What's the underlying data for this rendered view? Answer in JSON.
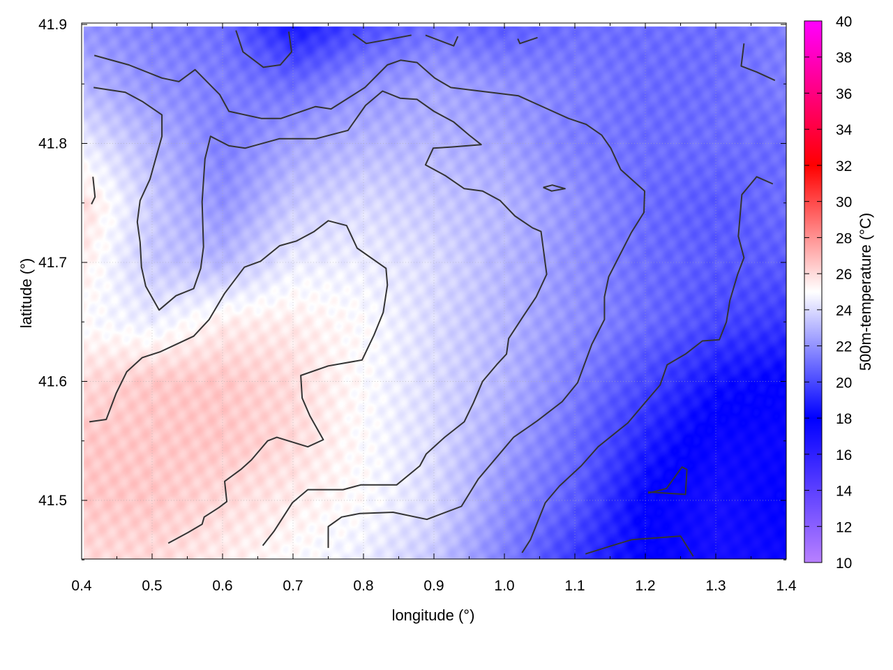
{
  "chart_data": {
    "type": "heatmap",
    "title": "",
    "xlabel": "longitude (°)",
    "ylabel": "latitude (°)",
    "cblabel": "500m-temperature (°C)",
    "xlim": [
      0.4,
      1.4
    ],
    "ylim": [
      41.4507,
      41.9012
    ],
    "cblim": [
      10,
      40
    ],
    "xticks": [
      "0.4",
      "0.5",
      "0.6",
      "0.7",
      "0.8",
      "0.9",
      "1.0",
      "1.1",
      "1.2",
      "1.3",
      "1.4"
    ],
    "yticks": [
      "41.5",
      "41.6",
      "41.7",
      "41.8",
      "41.9"
    ],
    "cbticks": [
      "10",
      "12",
      "14",
      "16",
      "18",
      "20",
      "22",
      "24",
      "26",
      "28",
      "30",
      "32",
      "34",
      "36",
      "38",
      "40"
    ],
    "grid": true,
    "palette": [
      [
        10,
        "#b880ff"
      ],
      [
        18,
        "#0000ff"
      ],
      [
        25,
        "#ffffff"
      ],
      [
        32,
        "#ff0000"
      ],
      [
        40,
        "#ff00ff"
      ]
    ],
    "field": {
      "lon": [
        0.4,
        0.5,
        0.6,
        0.7,
        0.8,
        0.9,
        1.0,
        1.1,
        1.2,
        1.3,
        1.4
      ],
      "lat": [
        41.9,
        41.85,
        41.8,
        41.75,
        41.7,
        41.65,
        41.6,
        41.55,
        41.5,
        41.45
      ],
      "temperature": [
        [
          22,
          21.5,
          21,
          18.5,
          20,
          21,
          20.5,
          21,
          21,
          21,
          21.5
        ],
        [
          23,
          22,
          21.5,
          21,
          22,
          22.5,
          22,
          21.5,
          21,
          21,
          21.5
        ],
        [
          24.5,
          23,
          21.5,
          22.5,
          23,
          23,
          22.5,
          21.5,
          21,
          21,
          21
        ],
        [
          26,
          23.5,
          22,
          23.5,
          24,
          23.5,
          23,
          22,
          21,
          20.5,
          21
        ],
        [
          25.5,
          23.5,
          23,
          24.5,
          24.5,
          24,
          23,
          22,
          21,
          20.5,
          20.5
        ],
        [
          25,
          24.5,
          25.5,
          25.5,
          25,
          24,
          23,
          22,
          21,
          20,
          19.5
        ],
        [
          26,
          26.5,
          26.5,
          26,
          25,
          24,
          23,
          21.5,
          20,
          18.5,
          18
        ],
        [
          26.5,
          26.5,
          26.5,
          26,
          25,
          24,
          22.5,
          21,
          19,
          17.5,
          17.5
        ],
        [
          26.5,
          26.5,
          26,
          25.5,
          25,
          24,
          22,
          20.5,
          18,
          17,
          18
        ],
        [
          26,
          26,
          25.5,
          25,
          24.5,
          23.5,
          21.5,
          19.5,
          18,
          17,
          17.5
        ]
      ]
    },
    "contours": [
      [
        [
          0.418,
          41.874
        ],
        [
          0.467,
          41.866
        ],
        [
          0.514,
          41.855
        ],
        [
          0.538,
          41.852
        ],
        [
          0.561,
          41.862
        ],
        [
          0.596,
          41.841
        ],
        [
          0.609,
          41.827
        ],
        [
          0.655,
          41.821
        ],
        [
          0.683,
          41.821
        ],
        [
          0.732,
          41.831
        ],
        [
          0.754,
          41.829
        ],
        [
          0.802,
          41.847
        ],
        [
          0.834,
          41.866
        ],
        [
          0.853,
          41.87
        ],
        [
          0.876,
          41.868
        ],
        [
          0.901,
          41.855
        ],
        [
          0.924,
          41.847
        ],
        [
          1.02,
          41.84
        ],
        [
          1.091,
          41.821
        ],
        [
          1.116,
          41.816
        ],
        [
          1.138,
          41.807
        ],
        [
          1.151,
          41.796
        ],
        [
          1.165,
          41.778
        ],
        [
          1.199,
          41.76
        ],
        [
          1.198,
          41.742
        ],
        [
          1.18,
          41.725
        ],
        [
          1.148,
          41.688
        ],
        [
          1.142,
          41.671
        ],
        [
          1.142,
          41.652
        ],
        [
          1.124,
          41.631
        ],
        [
          1.104,
          41.599
        ],
        [
          1.082,
          41.583
        ],
        [
          1.047,
          41.567
        ],
        [
          1.013,
          41.553
        ],
        [
          0.963,
          41.518
        ],
        [
          0.939,
          41.495
        ],
        [
          0.89,
          41.484
        ],
        [
          0.842,
          41.49
        ],
        [
          0.795,
          41.489
        ],
        [
          0.769,
          41.486
        ],
        [
          0.75,
          41.478
        ],
        [
          0.75,
          41.46
        ]
      ],
      [
        [
          0.417,
          41.847
        ],
        [
          0.462,
          41.843
        ],
        [
          0.487,
          41.835
        ],
        [
          0.514,
          41.824
        ],
        [
          0.514,
          41.806
        ],
        [
          0.497,
          41.77
        ],
        [
          0.483,
          41.752
        ],
        [
          0.479,
          41.734
        ],
        [
          0.483,
          41.717
        ],
        [
          0.485,
          41.696
        ],
        [
          0.491,
          41.68
        ],
        [
          0.51,
          41.66
        ],
        [
          0.534,
          41.672
        ],
        [
          0.559,
          41.678
        ],
        [
          0.569,
          41.695
        ],
        [
          0.573,
          41.713
        ],
        [
          0.571,
          41.751
        ],
        [
          0.575,
          41.787
        ],
        [
          0.583,
          41.806
        ],
        [
          0.609,
          41.798
        ],
        [
          0.632,
          41.796
        ],
        [
          0.681,
          41.804
        ],
        [
          0.733,
          41.804
        ],
        [
          0.778,
          41.811
        ],
        [
          0.803,
          41.832
        ],
        [
          0.827,
          41.844
        ],
        [
          0.852,
          41.838
        ],
        [
          0.876,
          41.837
        ],
        [
          0.9,
          41.827
        ],
        [
          0.928,
          41.818
        ],
        [
          0.95,
          41.807
        ],
        [
          0.967,
          41.799
        ],
        [
          0.925,
          41.797
        ],
        [
          0.899,
          41.796
        ],
        [
          0.888,
          41.782
        ],
        [
          0.916,
          41.773
        ],
        [
          0.943,
          41.762
        ],
        [
          0.969,
          41.76
        ],
        [
          0.994,
          41.752
        ],
        [
          1.015,
          41.739
        ],
        [
          1.04,
          41.729
        ],
        [
          1.052,
          41.726
        ],
        [
          1.06,
          41.69
        ],
        [
          1.045,
          41.671
        ],
        [
          1.027,
          41.655
        ],
        [
          1.006,
          41.636
        ],
        [
          1.003,
          41.623
        ],
        [
          0.989,
          41.614
        ],
        [
          0.969,
          41.6
        ],
        [
          0.956,
          41.582
        ],
        [
          0.943,
          41.566
        ],
        [
          0.915,
          41.553
        ],
        [
          0.889,
          41.539
        ],
        [
          0.88,
          41.529
        ],
        [
          0.847,
          41.513
        ],
        [
          0.796,
          41.513
        ],
        [
          0.771,
          41.509
        ],
        [
          0.721,
          41.509
        ],
        [
          0.699,
          41.498
        ],
        [
          0.673,
          41.474
        ],
        [
          0.657,
          41.462
        ]
      ],
      [
        [
          0.411,
          41.566
        ],
        [
          0.435,
          41.568
        ],
        [
          0.449,
          41.59
        ],
        [
          0.464,
          41.608
        ],
        [
          0.486,
          41.62
        ],
        [
          0.512,
          41.625
        ],
        [
          0.559,
          41.638
        ],
        [
          0.581,
          41.652
        ],
        [
          0.603,
          41.674
        ],
        [
          0.631,
          41.696
        ],
        [
          0.654,
          41.701
        ],
        [
          0.681,
          41.714
        ],
        [
          0.705,
          41.718
        ],
        [
          0.73,
          41.726
        ],
        [
          0.75,
          41.735
        ],
        [
          0.776,
          41.731
        ],
        [
          0.791,
          41.712
        ],
        [
          0.832,
          41.695
        ],
        [
          0.834,
          41.681
        ],
        [
          0.828,
          41.658
        ],
        [
          0.815,
          41.639
        ],
        [
          0.798,
          41.618
        ],
        [
          0.75,
          41.613
        ],
        [
          0.711,
          41.605
        ],
        [
          0.713,
          41.586
        ],
        [
          0.724,
          41.571
        ],
        [
          0.743,
          41.551
        ],
        [
          0.721,
          41.545
        ],
        [
          0.677,
          41.553
        ],
        [
          0.664,
          41.55
        ],
        [
          0.641,
          41.534
        ],
        [
          0.626,
          41.526
        ],
        [
          0.603,
          41.516
        ],
        [
          0.606,
          41.499
        ],
        [
          0.595,
          41.494
        ],
        [
          0.574,
          41.486
        ],
        [
          0.571,
          41.48
        ],
        [
          0.551,
          41.473
        ],
        [
          0.523,
          41.464
        ]
      ],
      [
        [
          1.025,
          41.456
        ],
        [
          1.037,
          41.467
        ],
        [
          1.058,
          41.498
        ],
        [
          1.078,
          41.512
        ],
        [
          1.109,
          41.529
        ],
        [
          1.133,
          41.545
        ],
        [
          1.175,
          41.565
        ],
        [
          1.195,
          41.579
        ],
        [
          1.221,
          41.597
        ],
        [
          1.231,
          41.614
        ],
        [
          1.257,
          41.623
        ],
        [
          1.281,
          41.634
        ],
        [
          1.305,
          41.635
        ],
        [
          1.315,
          41.65
        ],
        [
          1.32,
          41.668
        ],
        [
          1.331,
          41.69
        ],
        [
          1.34,
          41.704
        ],
        [
          1.332,
          41.722
        ],
        [
          1.337,
          41.757
        ],
        [
          1.358,
          41.772
        ],
        [
          1.381,
          41.766
        ]
      ],
      [
        [
          1.115,
          41.455
        ],
        [
          1.153,
          41.462
        ],
        [
          1.181,
          41.467
        ],
        [
          1.25,
          41.47
        ],
        [
          1.268,
          41.453
        ]
      ],
      [
        [
          1.204,
          41.506
        ],
        [
          1.23,
          41.51
        ],
        [
          1.252,
          41.528
        ],
        [
          1.259,
          41.526
        ],
        [
          1.257,
          41.505
        ],
        [
          1.204,
          41.507
        ]
      ],
      [
        [
          0.619,
          41.895
        ],
        [
          0.629,
          41.877
        ],
        [
          0.658,
          41.864
        ],
        [
          0.682,
          41.866
        ],
        [
          0.698,
          41.877
        ],
        [
          0.694,
          41.894
        ]
      ],
      [
        [
          0.785,
          41.892
        ],
        [
          0.804,
          41.884
        ],
        [
          0.832,
          41.887
        ],
        [
          0.868,
          41.891
        ]
      ],
      [
        [
          0.888,
          41.891
        ],
        [
          0.928,
          41.882
        ],
        [
          0.934,
          41.89
        ]
      ],
      [
        [
          1.019,
          41.888
        ],
        [
          1.022,
          41.884
        ],
        [
          1.047,
          41.889
        ]
      ],
      [
        [
          1.34,
          41.884
        ],
        [
          1.336,
          41.865
        ],
        [
          1.358,
          41.86
        ],
        [
          1.384,
          41.853
        ]
      ],
      [
        [
          0.416,
          41.772
        ],
        [
          0.419,
          41.755
        ],
        [
          0.414,
          41.749
        ]
      ],
      [
        [
          1.055,
          41.763
        ],
        [
          1.068,
          41.765
        ],
        [
          1.086,
          41.762
        ],
        [
          1.067,
          41.76
        ],
        [
          1.055,
          41.763
        ]
      ]
    ]
  }
}
